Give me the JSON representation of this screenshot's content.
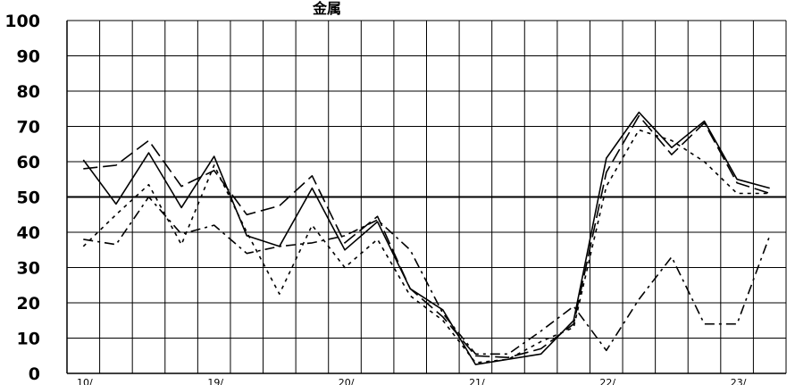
{
  "chart_data": {
    "type": "line",
    "title": "金属",
    "xlabel": "",
    "ylabel": "",
    "ylim": [
      0,
      100
    ],
    "yticks": [
      "0",
      "10",
      "20",
      "30",
      "40",
      "50",
      "60",
      "70",
      "80",
      "90",
      "100"
    ],
    "grid": true,
    "legend": "none",
    "reference_line": 50,
    "x": [
      1,
      2,
      3,
      4,
      5,
      6,
      7,
      8,
      9,
      10,
      11,
      12,
      13,
      14,
      15,
      16,
      17,
      18,
      19,
      20,
      21,
      22,
      23
    ],
    "series": [
      {
        "style": "solid",
        "color": "#000000",
        "values": [
          60.5,
          48,
          62.5,
          47,
          61.5,
          39,
          36,
          52.5,
          35,
          43,
          24,
          18,
          2.5,
          4,
          5.5,
          15,
          61,
          74,
          64,
          71.5,
          55,
          52.5,
          null
        ]
      },
      {
        "style": "long-dash",
        "color": "#000000",
        "values": [
          58,
          59,
          66,
          53,
          57.5,
          45,
          47.5,
          56,
          37,
          44.5,
          24,
          16,
          5,
          4.5,
          7,
          14,
          57,
          73,
          62,
          71,
          54,
          51,
          null
        ]
      },
      {
        "style": "dash-dot",
        "color": "#000000",
        "values": [
          38,
          36.5,
          50,
          39.5,
          42,
          34,
          36,
          37,
          39,
          43.5,
          35,
          17,
          5.5,
          5.5,
          12,
          19,
          6.5,
          21,
          33,
          14,
          14,
          39,
          null
        ]
      },
      {
        "style": "dotted",
        "color": "#000000",
        "values": [
          36,
          45,
          53.5,
          36.5,
          59,
          40,
          22.5,
          42,
          30,
          38,
          22,
          15,
          3,
          4,
          9,
          13,
          53,
          69,
          66,
          60,
          51,
          51,
          null
        ]
      }
    ],
    "x_tick_labels": [
      "10/",
      "19/",
      "20/",
      "21/",
      "22/",
      "23/"
    ]
  }
}
